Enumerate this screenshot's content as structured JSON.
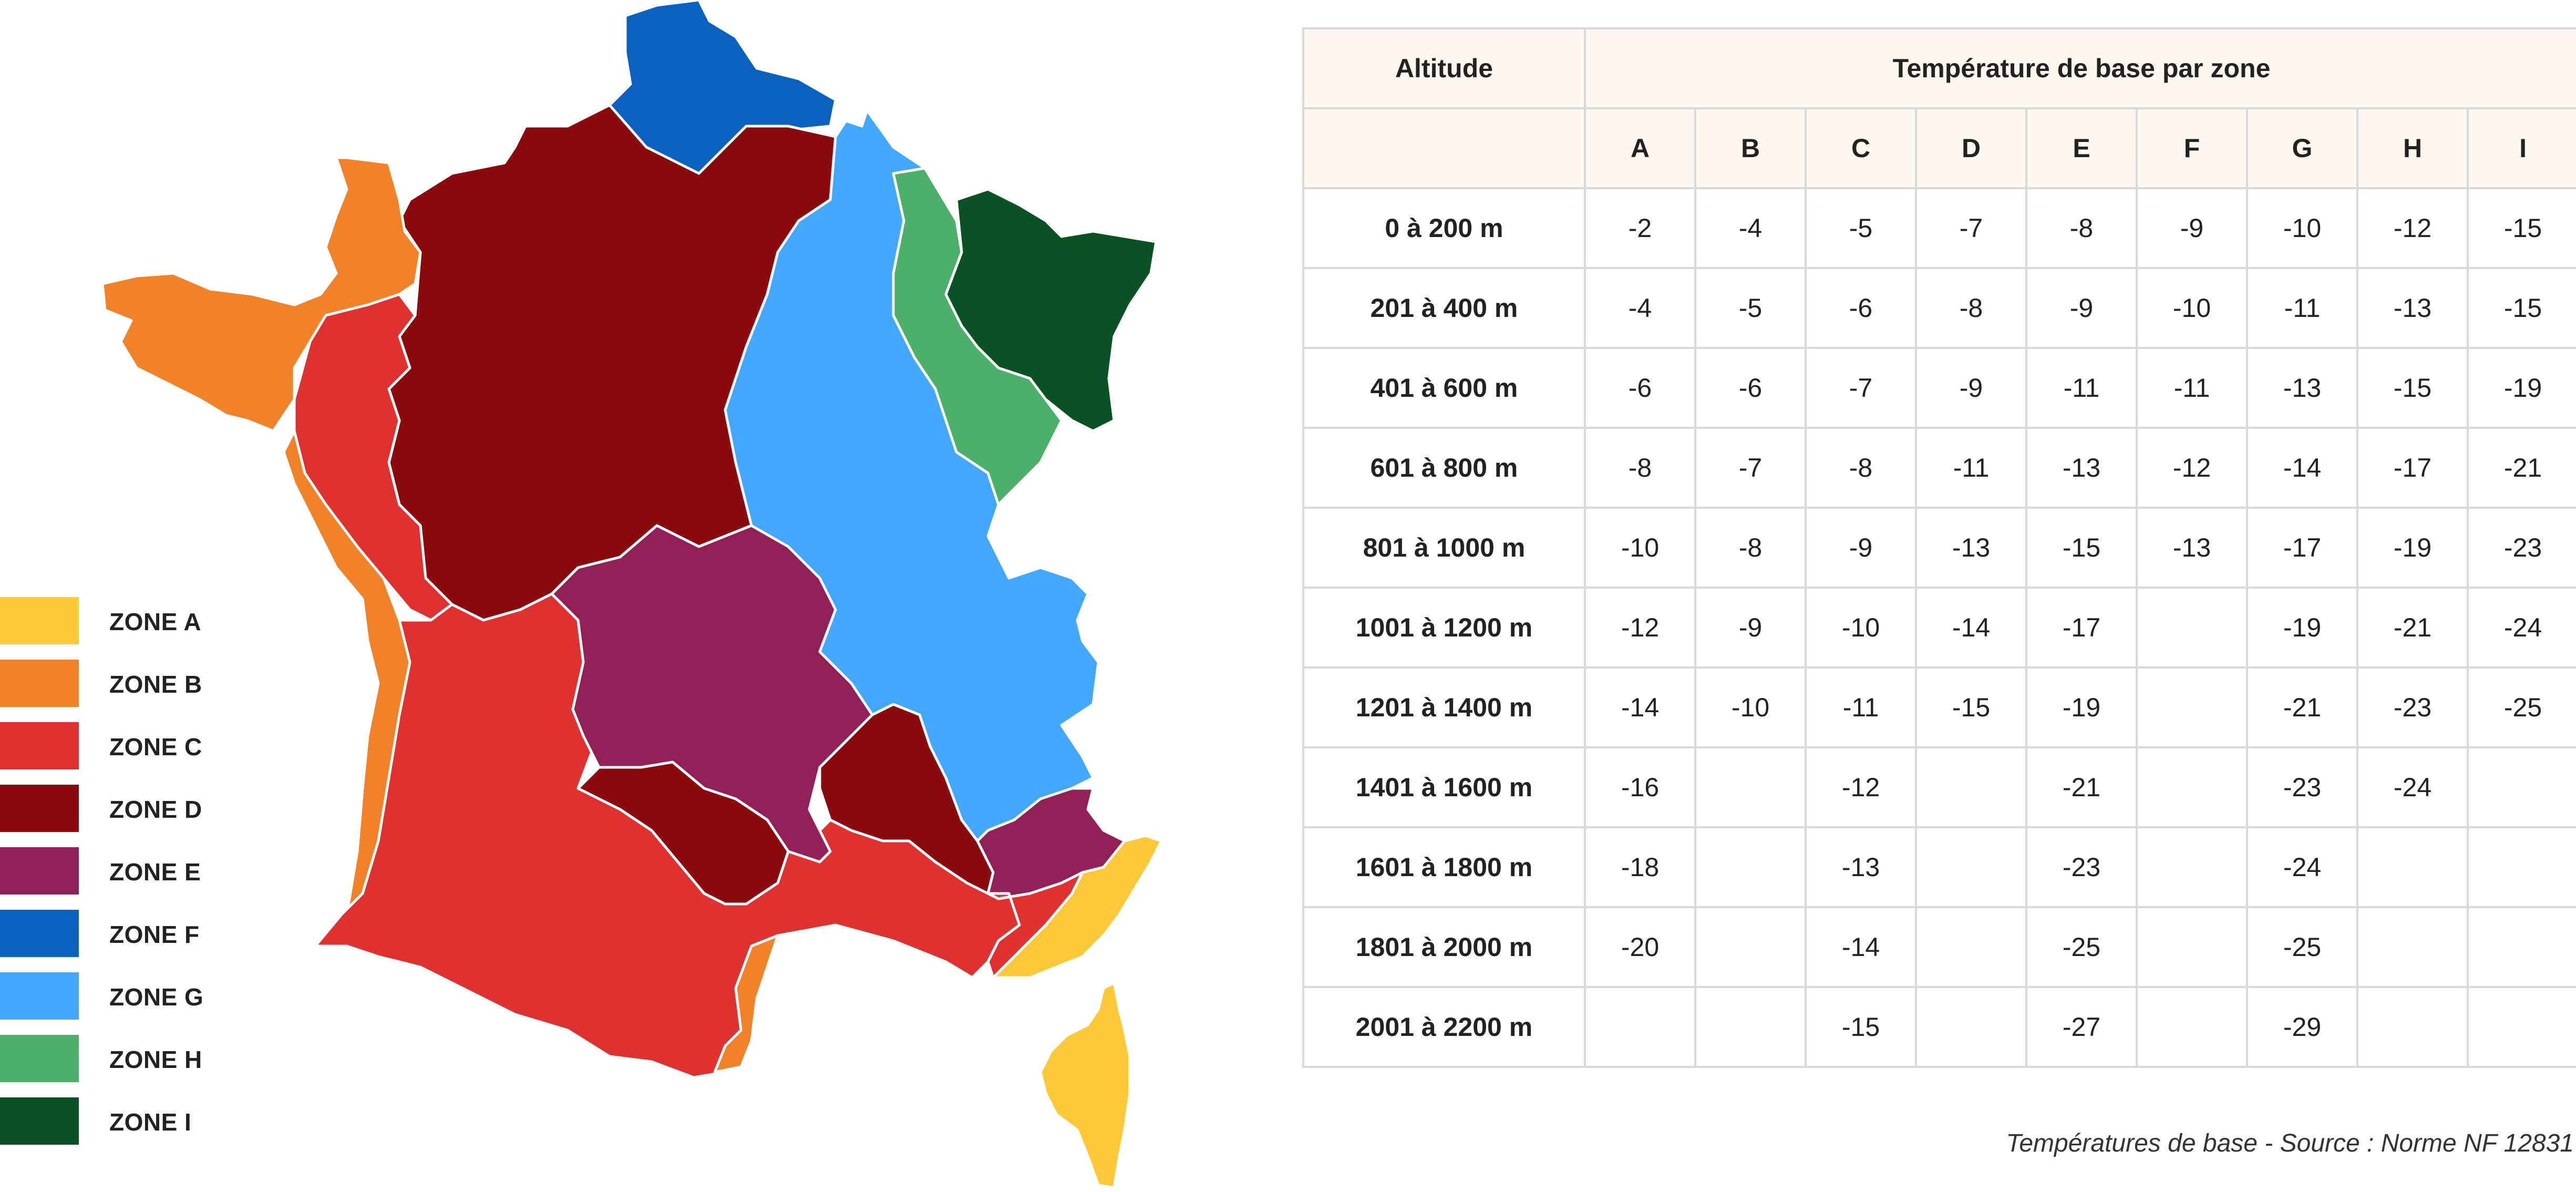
{
  "legend": [
    {
      "label": "ZONE A",
      "color": "#fdc93b"
    },
    {
      "label": "ZONE B",
      "color": "#f2822a"
    },
    {
      "label": "ZONE C",
      "color": "#e03131"
    },
    {
      "label": "ZONE D",
      "color": "#8b0a0d"
    },
    {
      "label": "ZONE E",
      "color": "#921f56"
    },
    {
      "label": "ZONE F",
      "color": "#0a61bf"
    },
    {
      "label": "ZONE G",
      "color": "#43a6ff"
    },
    {
      "label": "ZONE H",
      "color": "#4caf6a"
    },
    {
      "label": "ZONE I",
      "color": "#0a5123"
    }
  ],
  "table": {
    "header_altitude": "Altitude",
    "header_group": "Température de base par zone",
    "zones": [
      "A",
      "B",
      "C",
      "D",
      "E",
      "F",
      "G",
      "H",
      "I"
    ],
    "rows": [
      {
        "altitude": "0 à 200 m",
        "values": [
          "-2",
          "-4",
          "-5",
          "-7",
          "-8",
          "-9",
          "-10",
          "-12",
          "-15"
        ]
      },
      {
        "altitude": "201 à 400 m",
        "values": [
          "-4",
          "-5",
          "-6",
          "-8",
          "-9",
          "-10",
          "-11",
          "-13",
          "-15"
        ]
      },
      {
        "altitude": "401 à 600 m",
        "values": [
          "-6",
          "-6",
          "-7",
          "-9",
          "-11",
          "-11",
          "-13",
          "-15",
          "-19"
        ]
      },
      {
        "altitude": "601 à 800 m",
        "values": [
          "-8",
          "-7",
          "-8",
          "-11",
          "-13",
          "-12",
          "-14",
          "-17",
          "-21"
        ]
      },
      {
        "altitude": "801 à 1000 m",
        "values": [
          "-10",
          "-8",
          "-9",
          "-13",
          "-15",
          "-13",
          "-17",
          "-19",
          "-23"
        ]
      },
      {
        "altitude": "1001 à 1200 m",
        "values": [
          "-12",
          "-9",
          "-10",
          "-14",
          "-17",
          "",
          "-19",
          "-21",
          "-24"
        ]
      },
      {
        "altitude": "1201 à 1400 m",
        "values": [
          "-14",
          "-10",
          "-11",
          "-15",
          "-19",
          "",
          "-21",
          "-23",
          "-25"
        ]
      },
      {
        "altitude": "1401 à 1600 m",
        "values": [
          "-16",
          "",
          "-12",
          "",
          "-21",
          "",
          "-23",
          "-24",
          ""
        ]
      },
      {
        "altitude": "1601 à 1800 m",
        "values": [
          "-18",
          "",
          "-13",
          "",
          "-23",
          "",
          "-24",
          "",
          ""
        ]
      },
      {
        "altitude": "1801 à 2000 m",
        "values": [
          "-20",
          "",
          "-14",
          "",
          "-25",
          "",
          "-25",
          "",
          ""
        ]
      },
      {
        "altitude": "2001 à 2200 m",
        "values": [
          "",
          "",
          "-15",
          "",
          "-27",
          "",
          "-29",
          "",
          ""
        ]
      }
    ]
  },
  "caption": "Températures de base - Source : Norme NF 12831"
}
